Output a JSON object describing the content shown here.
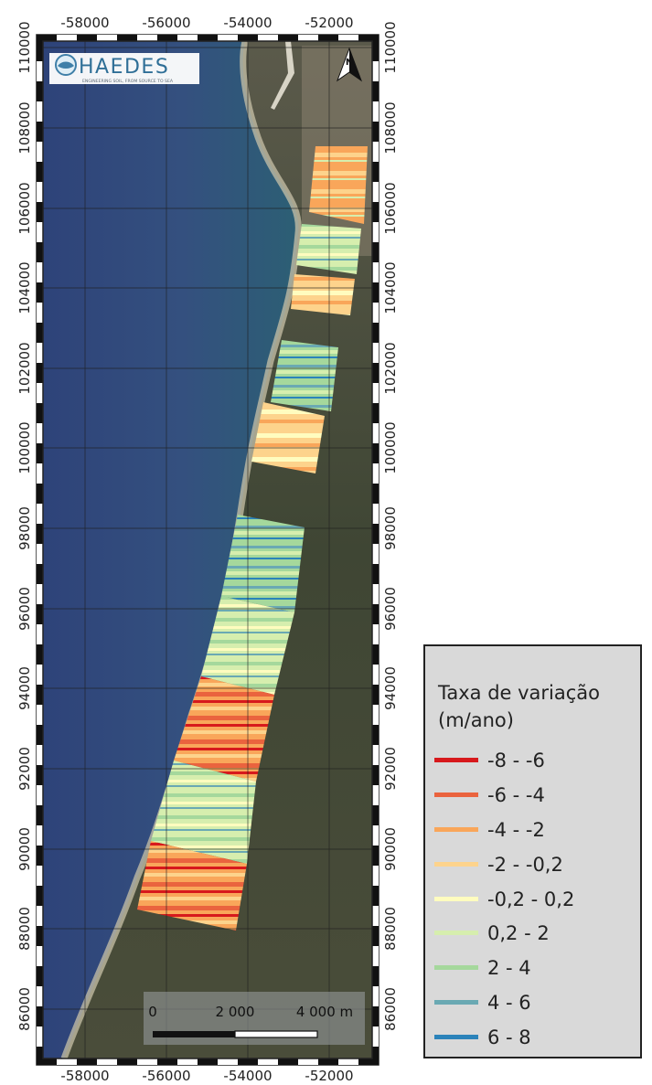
{
  "logo": {
    "name": "HAEDES",
    "tagline": "ENGINEERING SOIL, FROM SOURCE TO SEA"
  },
  "north_arrow": {
    "label": "N"
  },
  "x_ticks": [
    "-58000",
    "-56000",
    "-54000",
    "-52000"
  ],
  "y_ticks": [
    "110000",
    "108000",
    "106000",
    "104000",
    "102000",
    "100000",
    "98000",
    "96000",
    "94000",
    "92000",
    "90000",
    "88000",
    "86000"
  ],
  "scale_bar": {
    "labels": [
      "0",
      "2 000",
      "4 000 m"
    ]
  },
  "legend": {
    "title_lines": [
      "Taxa de variação",
      "(m/ano)"
    ],
    "items": [
      {
        "label": "-8 - -6",
        "color": "#d7191c"
      },
      {
        "label": "-6 - -4",
        "color": "#ea633e"
      },
      {
        "label": "-4 - -2",
        "color": "#f9a65a"
      },
      {
        "label": "-2 - -0,2",
        "color": "#fdd38c"
      },
      {
        "label": "-0,2 - 0,2",
        "color": "#fffcbf"
      },
      {
        "label": "0,2 - 2",
        "color": "#d6eeae"
      },
      {
        "label": "2 - 4",
        "color": "#a5d89c"
      },
      {
        "label": "4 - 6",
        "color": "#6aa9b3"
      },
      {
        "label": "6 - 8",
        "color": "#2b83ba"
      }
    ]
  }
}
